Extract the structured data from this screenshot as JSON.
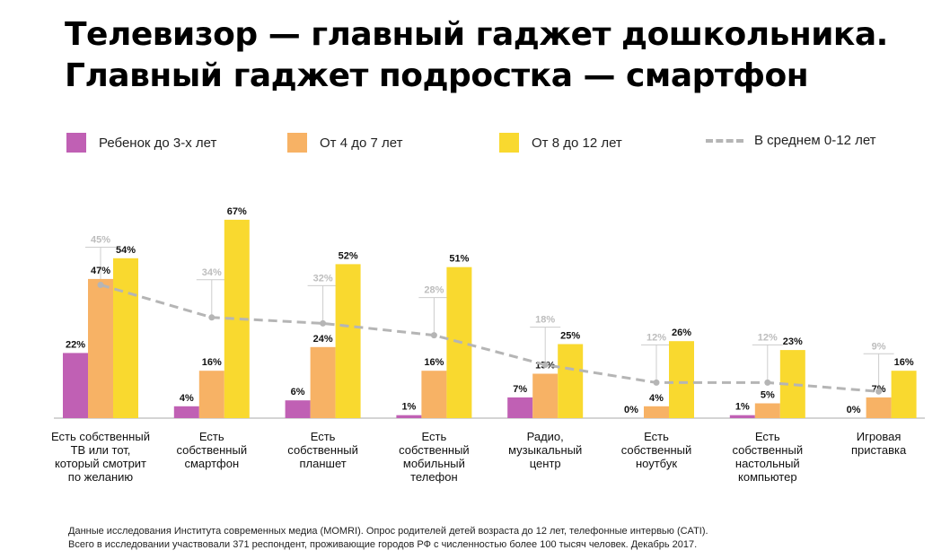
{
  "title": {
    "line1": "Телевизор — главный гаджет дошкольника.",
    "line2": "Главный гаджет подростка — смартфон"
  },
  "legend": [
    {
      "label": "Ребенок до 3-х лет",
      "color": "#c060b4",
      "kind": "swatch"
    },
    {
      "label": "От 4 до 7 лет",
      "color": "#f7b265",
      "kind": "swatch"
    },
    {
      "label": "От 8 до 12 лет",
      "color": "#f9d92f",
      "kind": "swatch"
    },
    {
      "label": "В среднем 0-12 лет",
      "color": "#b5b5b5",
      "kind": "dash"
    }
  ],
  "chart_data": {
    "type": "bar",
    "categories": [
      [
        "Есть собственный",
        "ТВ или тот,",
        "который смотрит",
        "по желанию"
      ],
      [
        "Есть",
        "собственный",
        "смартфон"
      ],
      [
        "Есть",
        "собственный",
        "планшет"
      ],
      [
        "Есть",
        "собственный",
        "мобильный",
        "телефон"
      ],
      [
        "Радио,",
        "музыкальный",
        "центр"
      ],
      [
        "Есть",
        "собственный",
        "ноутбук"
      ],
      [
        "Есть",
        "собственный",
        "настольный",
        "компьютер"
      ],
      [
        "Игровая",
        "приставка"
      ]
    ],
    "series": [
      {
        "name": "Ребенок до 3-х лет",
        "values": [
          22,
          4,
          6,
          1,
          7,
          0,
          1,
          0
        ],
        "labels": [
          "22%",
          "4%",
          "6%",
          "1%",
          "7%",
          "0%",
          "1%",
          "0%"
        ],
        "color": "#c060b4"
      },
      {
        "name": "От 4 до 7 лет",
        "values": [
          47,
          16,
          24,
          16,
          15,
          4,
          5,
          7
        ],
        "labels": [
          "47%",
          "16%",
          "24%",
          "16%",
          "15%",
          "4%",
          "5%",
          "7%"
        ],
        "color": "#f7b265"
      },
      {
        "name": "От 8 до 12 лет",
        "values": [
          54,
          67,
          52,
          51,
          25,
          26,
          23,
          16
        ],
        "labels": [
          "54%",
          "67%",
          "52%",
          "51%",
          "25%",
          "26%",
          "23%",
          "16%"
        ],
        "color": "#f9d92f"
      }
    ],
    "average": {
      "name": "В среднем 0-12 лет",
      "values": [
        45,
        34,
        32,
        28,
        18,
        12,
        12,
        9
      ],
      "labels": [
        "45%",
        "34%",
        "32%",
        "28%",
        "18%",
        "12%",
        "12%",
        "9%"
      ],
      "color": "#b5b5b5"
    },
    "ylim": [
      0,
      70
    ],
    "grid": false,
    "legend_position": "top"
  },
  "footnote": {
    "line1": "Данные исследования Института современных медиа (MOMRI). Опрос родителей детей возраста до 12 лет, телефонные интервью (CATI).",
    "line2": "Всего в исследовании участвовали 371 респондент, проживающие городов РФ с численностью более 100 тысяч человек. Декабрь 2017."
  }
}
